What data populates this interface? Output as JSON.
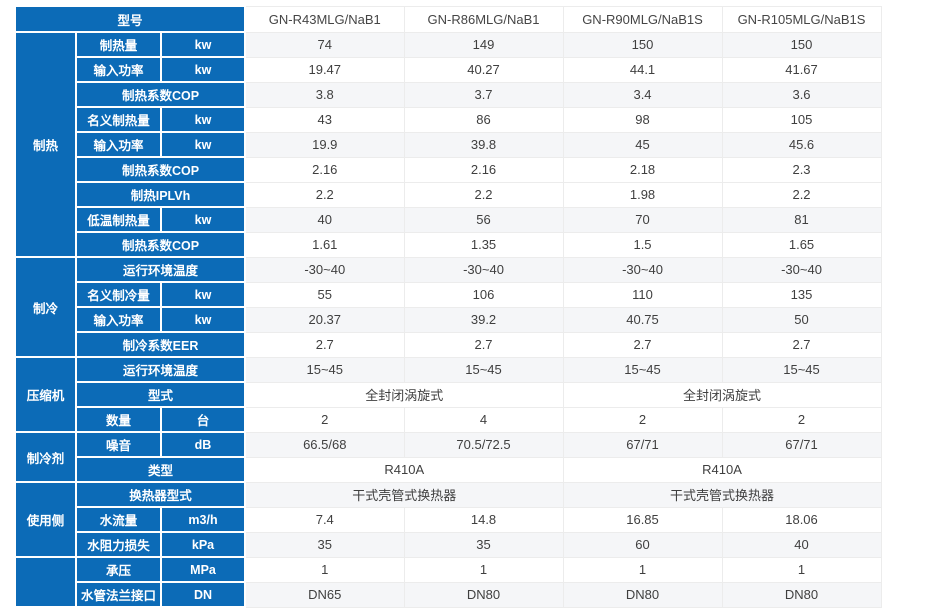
{
  "colors": {
    "header_blue": "#0c6bb7",
    "stripe_row": "#f5f6f8",
    "header_text": "#ffffff",
    "value_text": "#3f3f3f"
  },
  "table": {
    "model_label": "型号",
    "models": [
      "GN-R43MLG/NaB1",
      "GN-R86MLG/NaB1",
      "GN-R90MLG/NaB1S",
      "GN-R105MLG/NaB1S"
    ],
    "groups": [
      {
        "name": "制热",
        "rows": [
          {
            "label": "制热量",
            "unit": "kw",
            "values": [
              "74",
              "149",
              "150",
              "150"
            ]
          },
          {
            "label": "输入功率",
            "unit": "kw",
            "values": [
              "19.47",
              "40.27",
              "44.1",
              "41.67"
            ]
          },
          {
            "label": "制热系数COP",
            "unit": null,
            "values": [
              "3.8",
              "3.7",
              "3.4",
              "3.6"
            ]
          },
          {
            "label": "名义制热量",
            "unit": "kw",
            "values": [
              "43",
              "86",
              "98",
              "105"
            ]
          },
          {
            "label": "输入功率",
            "unit": "kw",
            "values": [
              "19.9",
              "39.8",
              "45",
              "45.6"
            ]
          },
          {
            "label": "制热系数COP",
            "unit": null,
            "values": [
              "2.16",
              "2.16",
              "2.18",
              "2.3"
            ]
          },
          {
            "label": "制热IPLVh",
            "unit": null,
            "values": [
              "2.2",
              "2.2",
              "1.98",
              "2.2"
            ]
          },
          {
            "label": "低温制热量",
            "unit": "kw",
            "values": [
              "40",
              "56",
              "70",
              "81"
            ]
          },
          {
            "label": "制热系数COP",
            "unit": null,
            "values": [
              "1.61",
              "1.35",
              "1.5",
              "1.65"
            ]
          }
        ]
      },
      {
        "name": "制冷",
        "rows": [
          {
            "label": "运行环境温度",
            "unit": null,
            "values": [
              "-30~40",
              "-30~40",
              "-30~40",
              "-30~40"
            ]
          },
          {
            "label": "名义制冷量",
            "unit": "kw",
            "values": [
              "55",
              "106",
              "110",
              "135"
            ]
          },
          {
            "label": "输入功率",
            "unit": "kw",
            "values": [
              "20.37",
              "39.2",
              "40.75",
              "50"
            ]
          },
          {
            "label": "制冷系数EER",
            "unit": null,
            "values": [
              "2.7",
              "2.7",
              "2.7",
              "2.7"
            ]
          }
        ]
      },
      {
        "name": "压缩机",
        "rows": [
          {
            "label": "运行环境温度",
            "unit": null,
            "values": [
              "15~45",
              "15~45",
              "15~45",
              "15~45"
            ]
          },
          {
            "label": "型式",
            "unit": null,
            "span": 2,
            "values": [
              "全封闭涡旋式",
              "全封闭涡旋式"
            ]
          },
          {
            "label": "数量",
            "unit": "台",
            "values": [
              "2",
              "4",
              "2",
              "2"
            ]
          }
        ]
      },
      {
        "name": "制冷剂",
        "rows": [
          {
            "label": "噪音",
            "unit": "dB",
            "values": [
              "66.5/68",
              "70.5/72.5",
              "67/71",
              "67/71"
            ]
          },
          {
            "label": "类型",
            "unit": null,
            "span": 2,
            "values": [
              "R410A",
              "R410A"
            ]
          }
        ]
      },
      {
        "name": "使用侧",
        "rows": [
          {
            "label": "换热器型式",
            "unit": null,
            "span": 2,
            "values": [
              "干式壳管式换热器",
              "干式壳管式换热器"
            ]
          },
          {
            "label": "水流量",
            "unit": "m3/h",
            "values": [
              "7.4",
              "14.8",
              "16.85",
              "18.06"
            ]
          },
          {
            "label": "水阻力损失",
            "unit": "kPa",
            "values": [
              "35",
              "35",
              "60",
              "40"
            ]
          }
        ]
      },
      {
        "name": "",
        "rows": [
          {
            "label": "承压",
            "unit": "MPa",
            "values": [
              "1",
              "1",
              "1",
              "1"
            ]
          },
          {
            "label": "水管法兰接口",
            "unit": "DN",
            "values": [
              "DN65",
              "DN80",
              "DN80",
              "DN80"
            ]
          }
        ]
      }
    ]
  }
}
